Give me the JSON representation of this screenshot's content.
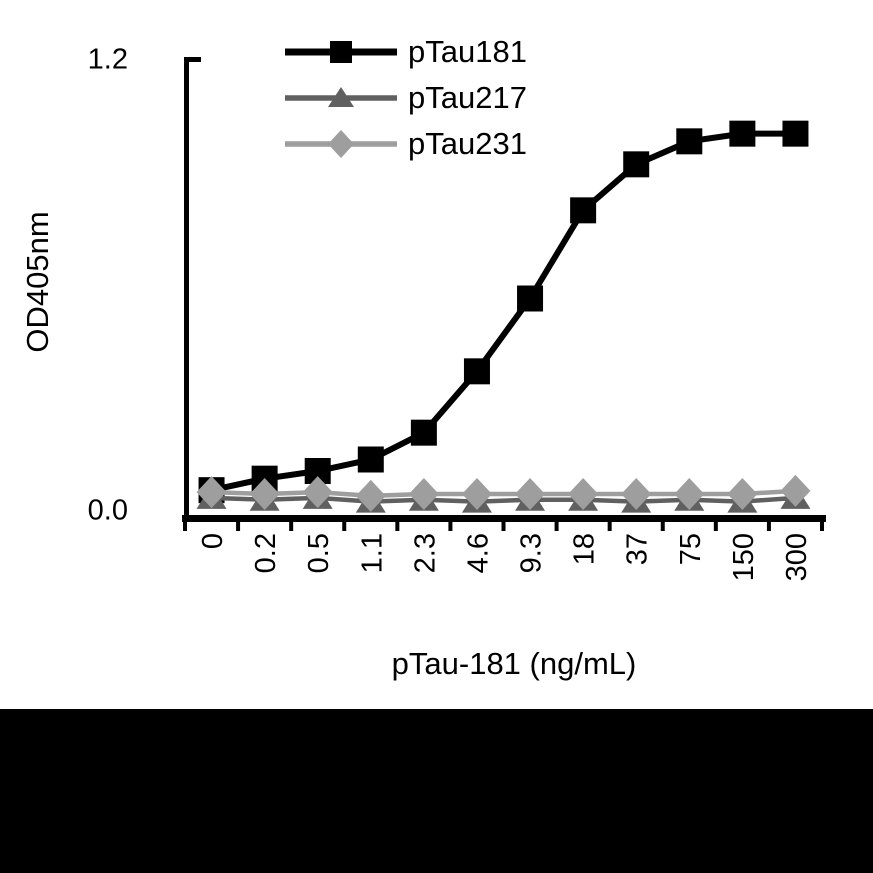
{
  "figure": {
    "background": "#ffffff",
    "bottom_bar_color": "#000000"
  },
  "chart_data": {
    "type": "line",
    "title": "",
    "xlabel": "pTau-181 (ng/mL)",
    "ylabel": "OD405nm",
    "categories": [
      "0",
      "0.2",
      "0.5",
      "1.1",
      "2.3",
      "4.6",
      "9.3",
      "18",
      "37",
      "75",
      "150",
      "300"
    ],
    "ylim": [
      0,
      1.2
    ],
    "yticks": [
      {
        "label": "0.0",
        "value": 0.0
      },
      {
        "label": "1.2",
        "value": 1.2
      }
    ],
    "grid": false,
    "legend_position": "top-inside",
    "axis_color": "#000000",
    "series": [
      {
        "name": "pTau181",
        "marker": "square",
        "color": "#000000",
        "line_width": 6,
        "values": [
          0.07,
          0.1,
          0.12,
          0.15,
          0.22,
          0.38,
          0.57,
          0.8,
          0.92,
          0.98,
          1.0,
          1.0
        ]
      },
      {
        "name": "pTau217",
        "marker": "triangle",
        "color": "#606060",
        "line_width": 4.5,
        "values": [
          0.05,
          0.045,
          0.05,
          0.04,
          0.045,
          0.04,
          0.045,
          0.045,
          0.04,
          0.045,
          0.04,
          0.05
        ]
      },
      {
        "name": "pTau231",
        "marker": "diamond",
        "color": "#9e9e9e",
        "line_width": 4.5,
        "values": [
          0.065,
          0.06,
          0.065,
          0.055,
          0.06,
          0.06,
          0.06,
          0.06,
          0.06,
          0.06,
          0.06,
          0.068
        ]
      }
    ]
  }
}
